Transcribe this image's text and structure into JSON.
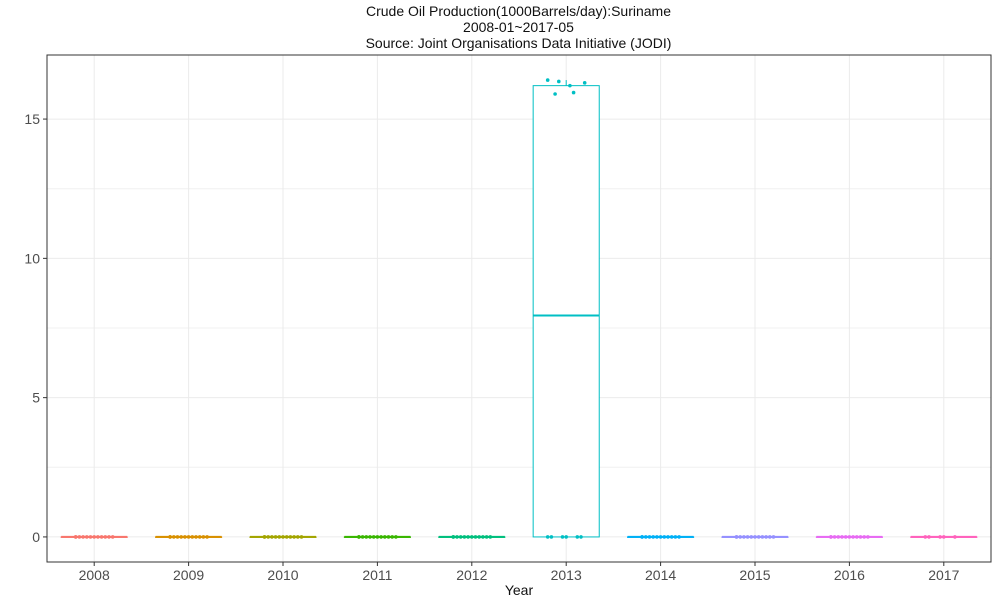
{
  "chart_data": {
    "type": "boxplot",
    "title": "Crude Oil Production(1000Barrels/day):Suriname",
    "subtitle": "2008-01~2017-05",
    "caption": "Source: Joint Organisations Data Initiative (JODI)",
    "xlabel": "Year",
    "ylabel": "",
    "ylim": [
      -0.9,
      17.3
    ],
    "yticks": [
      0,
      5,
      10,
      15
    ],
    "grid": true,
    "legend": "none",
    "categories": [
      "2008",
      "2009",
      "2010",
      "2011",
      "2012",
      "2013",
      "2014",
      "2015",
      "2016",
      "2017"
    ],
    "colors": [
      "#F8766D",
      "#D89000",
      "#A3A500",
      "#39B600",
      "#00BF7D",
      "#00BFC4",
      "#00B0F6",
      "#9590FF",
      "#E76BF3",
      "#FF62BC"
    ],
    "boxes": [
      {
        "year": "2008",
        "min": 0,
        "q1": 0,
        "median": 0,
        "q3": 0,
        "max": 0,
        "points": [
          0,
          0,
          0,
          0,
          0,
          0,
          0,
          0,
          0,
          0,
          0,
          0
        ]
      },
      {
        "year": "2009",
        "min": 0,
        "q1": 0,
        "median": 0,
        "q3": 0,
        "max": 0,
        "points": [
          0,
          0,
          0,
          0,
          0,
          0,
          0,
          0,
          0,
          0,
          0,
          0
        ]
      },
      {
        "year": "2010",
        "min": 0,
        "q1": 0,
        "median": 0,
        "q3": 0,
        "max": 0,
        "points": [
          0,
          0,
          0,
          0,
          0,
          0,
          0,
          0,
          0,
          0,
          0,
          0
        ]
      },
      {
        "year": "2011",
        "min": 0,
        "q1": 0,
        "median": 0,
        "q3": 0,
        "max": 0,
        "points": [
          0,
          0,
          0,
          0,
          0,
          0,
          0,
          0,
          0,
          0,
          0,
          0
        ]
      },
      {
        "year": "2012",
        "min": 0,
        "q1": 0,
        "median": 0,
        "q3": 0,
        "max": 0,
        "points": [
          0,
          0,
          0,
          0,
          0,
          0,
          0,
          0,
          0,
          0,
          0,
          0
        ]
      },
      {
        "year": "2013",
        "min": 0,
        "q1": 0,
        "median": 7.95,
        "q3": 16.2,
        "max": 16.4,
        "points": [
          0,
          0,
          0,
          0,
          0,
          0,
          15.9,
          16.2,
          16.3,
          16.35,
          15.95,
          16.4
        ]
      },
      {
        "year": "2014",
        "min": 0,
        "q1": 0,
        "median": 0,
        "q3": 0,
        "max": 0,
        "points": [
          0,
          0,
          0,
          0,
          0,
          0,
          0,
          0,
          0,
          0,
          0,
          0
        ]
      },
      {
        "year": "2015",
        "min": 0,
        "q1": 0,
        "median": 0,
        "q3": 0,
        "max": 0,
        "points": [
          0,
          0,
          0,
          0,
          0,
          0,
          0,
          0,
          0,
          0,
          0,
          0
        ]
      },
      {
        "year": "2016",
        "min": 0,
        "q1": 0,
        "median": 0,
        "q3": 0,
        "max": 0,
        "points": [
          0,
          0,
          0,
          0,
          0,
          0,
          0,
          0,
          0,
          0,
          0,
          0
        ]
      },
      {
        "year": "2017",
        "min": 0,
        "q1": 0,
        "median": 0,
        "q3": 0,
        "max": 0,
        "points": [
          0,
          0,
          0,
          0,
          0
        ]
      }
    ]
  }
}
